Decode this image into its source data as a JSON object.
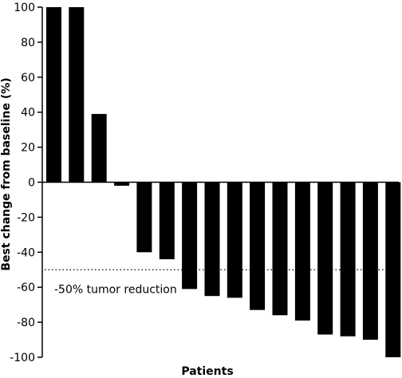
{
  "chart_data": {
    "type": "bar",
    "title": "",
    "xlabel": "Patients",
    "ylabel": "Best change from baseline (%)",
    "ylim": [
      -100,
      100
    ],
    "yticks": [
      100,
      80,
      60,
      40,
      20,
      0,
      -20,
      -40,
      -60,
      -80,
      -100
    ],
    "ytick_labels": [
      "100",
      "80",
      "60",
      "40",
      "20",
      "0",
      "-20",
      "-40",
      "-60",
      "-80",
      "-100"
    ],
    "values": [
      100,
      100,
      39,
      -2,
      -40,
      -44,
      -61,
      -65,
      -66,
      -73,
      -76,
      -79,
      -87,
      -88,
      -90,
      -100
    ],
    "bar_color": "#000000",
    "grid": false,
    "reference_line": {
      "value": -50,
      "style": "dotted",
      "label": "-50% tumor reduction"
    }
  }
}
